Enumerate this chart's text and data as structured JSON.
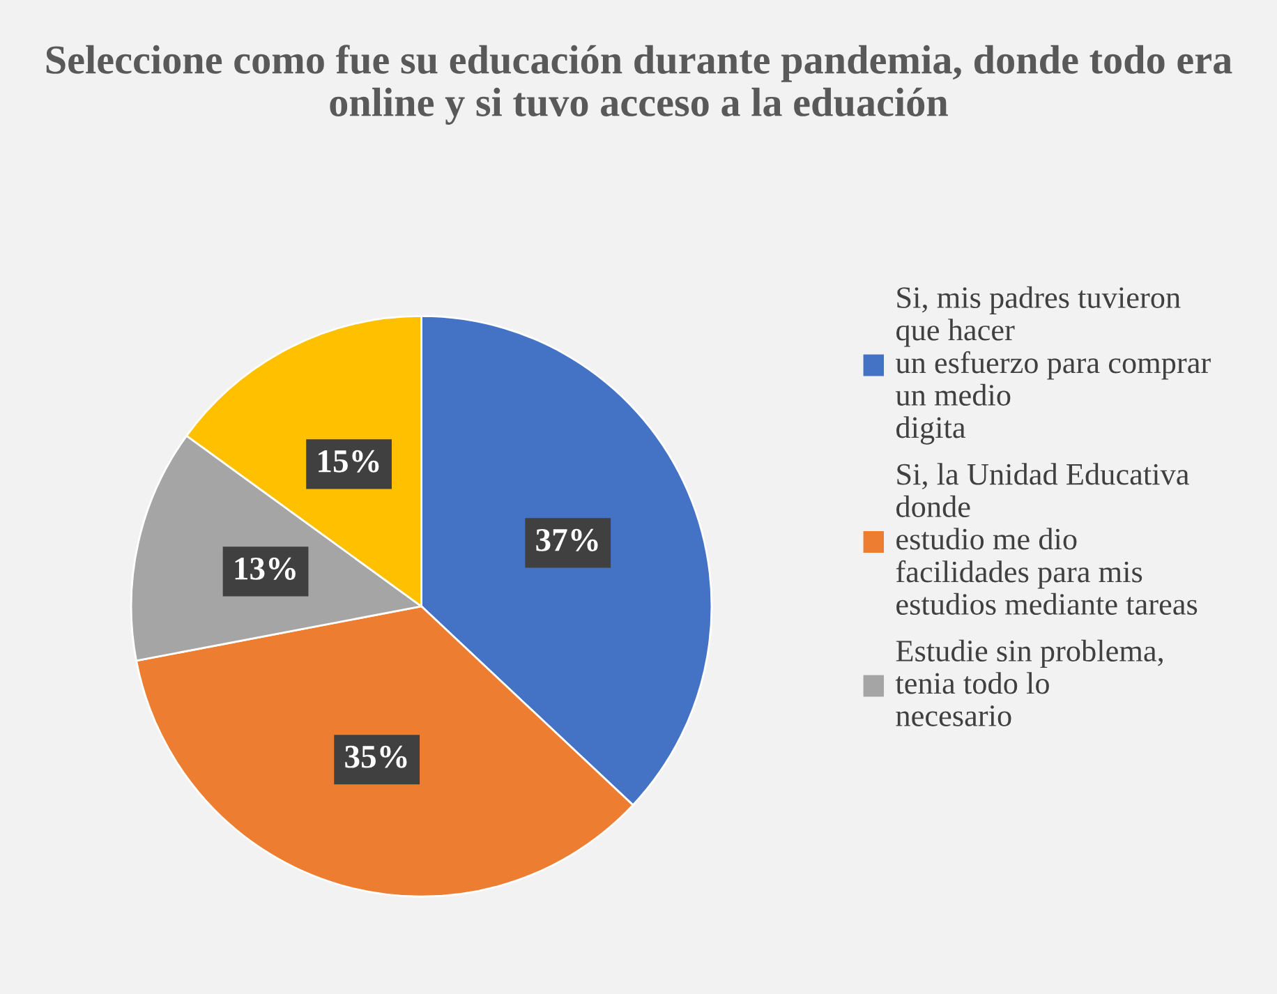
{
  "chart_data": {
    "type": "pie",
    "title": "Seleccione como fue su educación durante pandemia, donde todo era online y si tuvo acceso a la eduación",
    "categories": [
      "Si, mis padres tuvieron\nque hacer\nun esfuerzo para comprar\nun medio\ndigita",
      "Si, la Unidad Educativa\ndonde\nestudio me dio\nfacilidades para mis\nestudios mediante tareas",
      "Estudie sin problema,\ntenia todo lo\nnecesario",
      null
    ],
    "values": [
      37,
      35,
      13,
      15
    ],
    "colors": [
      "#4472c4",
      "#ed7d31",
      "#a5a5a5",
      "#ffc000"
    ],
    "value_labels": [
      "37%",
      "35%",
      "13%",
      "15%"
    ],
    "legend": "right"
  }
}
